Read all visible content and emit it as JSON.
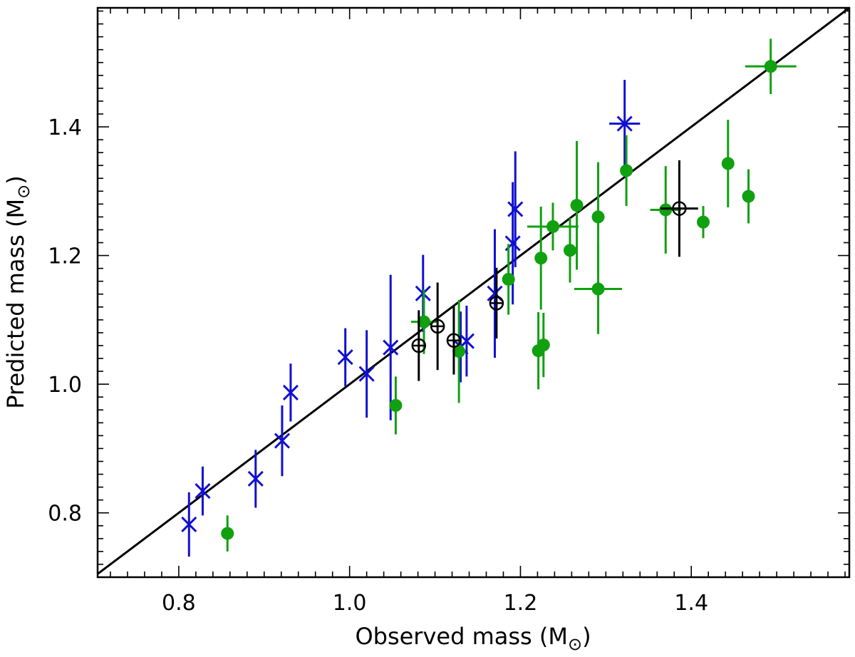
{
  "chart_data": {
    "type": "scatter",
    "title": "",
    "xlabel": "Observed mass (M",
    "ylabel": "Predicted mass (M",
    "unit_symbol": "⊙",
    "xlim": [
      0.705,
      1.585
    ],
    "ylim": [
      0.7,
      1.585
    ],
    "x_ticks": [
      "0.8",
      "1.0",
      "1.2",
      "1.4"
    ],
    "y_ticks": [
      "0.8",
      "1.0",
      "1.2",
      "1.4"
    ],
    "grid": false,
    "reference_line": {
      "name": "one-to-one",
      "color": "#000000"
    },
    "series": [
      {
        "name": "blue-cross",
        "marker": "x",
        "color": "#1010d0",
        "points": [
          {
            "x": 0.812,
            "y": 0.782,
            "xerr": 0.0,
            "yerr": 0.05
          },
          {
            "x": 0.828,
            "y": 0.834,
            "xerr": 0.0,
            "yerr": 0.038
          },
          {
            "x": 0.89,
            "y": 0.853,
            "xerr": 0.0,
            "yerr": 0.045
          },
          {
            "x": 0.921,
            "y": 0.912,
            "xerr": 0.0,
            "yerr": 0.055
          },
          {
            "x": 0.931,
            "y": 0.987,
            "xerr": 0.0,
            "yerr": 0.045
          },
          {
            "x": 0.995,
            "y": 1.042,
            "xerr": 0.0,
            "yerr": 0.045
          },
          {
            "x": 1.02,
            "y": 1.016,
            "xerr": 0.0,
            "yerr": 0.068
          },
          {
            "x": 1.048,
            "y": 1.057,
            "xerr": 0.0,
            "yerr": 0.113
          },
          {
            "x": 1.086,
            "y": 1.141,
            "xerr": 0.0,
            "yerr": 0.06
          },
          {
            "x": 1.13,
            "y": 1.058,
            "xerr": 0.0,
            "yerr": 0.055
          },
          {
            "x": 1.137,
            "y": 1.067,
            "xerr": 0.0,
            "yerr": 0.055
          },
          {
            "x": 1.17,
            "y": 1.141,
            "xerr": 0.0,
            "yerr": 0.1
          },
          {
            "x": 1.191,
            "y": 1.219,
            "xerr": 0.0,
            "yerr": 0.095
          },
          {
            "x": 1.194,
            "y": 1.272,
            "xerr": 0.0,
            "yerr": 0.09
          },
          {
            "x": 1.322,
            "y": 1.405,
            "xerr": 0.018,
            "yerr": 0.068
          }
        ]
      },
      {
        "name": "green-dot",
        "marker": "o",
        "color": "#10a010",
        "points": [
          {
            "x": 0.857,
            "y": 0.768,
            "xerr": 0.0,
            "yerr": 0.028
          },
          {
            "x": 1.054,
            "y": 0.967,
            "xerr": 0.0,
            "yerr": 0.045
          },
          {
            "x": 1.087,
            "y": 1.097,
            "xerr": 0.015,
            "yerr": 0.05
          },
          {
            "x": 1.128,
            "y": 1.051,
            "xerr": 0.0,
            "yerr": 0.08
          },
          {
            "x": 1.186,
            "y": 1.163,
            "xerr": 0.0,
            "yerr": 0.055
          },
          {
            "x": 1.221,
            "y": 1.052,
            "xerr": 0.0,
            "yerr": 0.06
          },
          {
            "x": 1.224,
            "y": 1.196,
            "xerr": 0.0,
            "yerr": 0.08
          },
          {
            "x": 1.227,
            "y": 1.061,
            "xerr": 0.0,
            "yerr": 0.05
          },
          {
            "x": 1.238,
            "y": 1.245,
            "xerr": 0.03,
            "yerr": 0.037
          },
          {
            "x": 1.258,
            "y": 1.208,
            "xerr": 0.0,
            "yerr": 0.05
          },
          {
            "x": 1.266,
            "y": 1.278,
            "xerr": 0.0,
            "yerr": 0.1
          },
          {
            "x": 1.291,
            "y": 1.148,
            "xerr": 0.028,
            "yerr": 0.07
          },
          {
            "x": 1.291,
            "y": 1.26,
            "xerr": 0.0,
            "yerr": 0.085
          },
          {
            "x": 1.324,
            "y": 1.332,
            "xerr": 0.0,
            "yerr": 0.055
          },
          {
            "x": 1.37,
            "y": 1.271,
            "xerr": 0.018,
            "yerr": 0.068
          },
          {
            "x": 1.414,
            "y": 1.252,
            "xerr": 0.0,
            "yerr": 0.025
          },
          {
            "x": 1.443,
            "y": 1.343,
            "xerr": 0.0,
            "yerr": 0.068
          },
          {
            "x": 1.467,
            "y": 1.292,
            "xerr": 0.0,
            "yerr": 0.042
          },
          {
            "x": 1.493,
            "y": 1.494,
            "xerr": 0.03,
            "yerr": 0.043
          }
        ]
      },
      {
        "name": "black-open-circle",
        "marker": "circle-plus",
        "color": "#000000",
        "points": [
          {
            "x": 1.081,
            "y": 1.06,
            "xerr": 0.0,
            "yerr": 0.055
          },
          {
            "x": 1.103,
            "y": 1.09,
            "xerr": 0.0,
            "yerr": 0.068
          },
          {
            "x": 1.122,
            "y": 1.068,
            "xerr": 0.0,
            "yerr": 0.053
          },
          {
            "x": 1.172,
            "y": 1.126,
            "xerr": 0.0,
            "yerr": 0.055
          },
          {
            "x": 1.386,
            "y": 1.273,
            "xerr": 0.022,
            "yerr": 0.075
          }
        ]
      }
    ]
  }
}
